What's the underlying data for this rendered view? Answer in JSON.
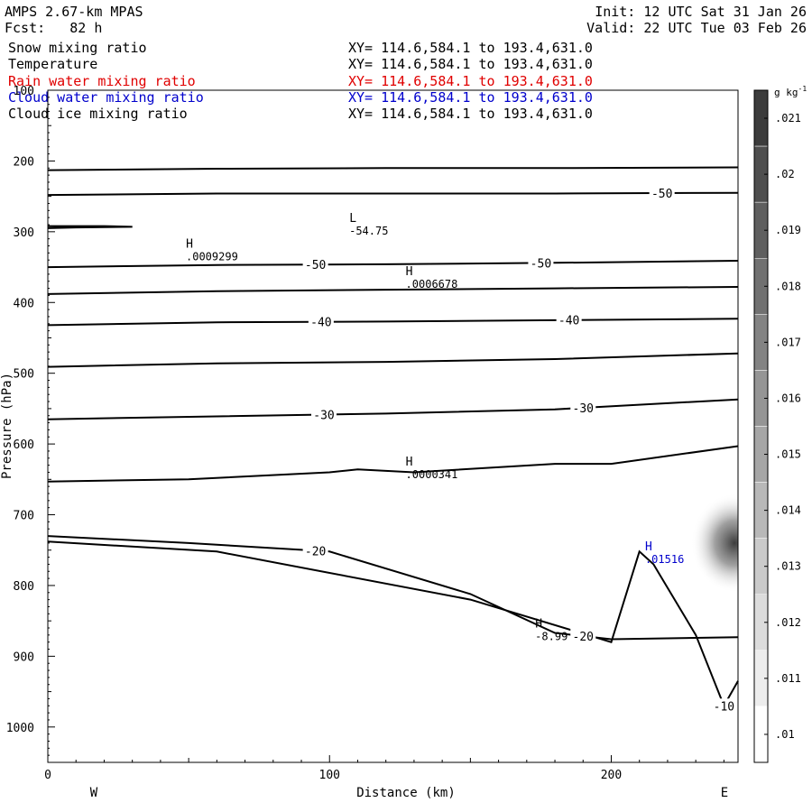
{
  "header": {
    "title": "AMPS 2.67-km MPAS",
    "forecast": "Fcst:   82 h",
    "init": "Init: 12 UTC Sat 31 Jan 26",
    "valid": "Valid: 22 UTC Tue 03 Feb 26",
    "fields": [
      {
        "name": "Snow mixing ratio",
        "xy": "XY= 114.6,584.1 to 193.4,631.0",
        "color": "#000000"
      },
      {
        "name": "Temperature",
        "xy": "XY= 114.6,584.1 to 193.4,631.0",
        "color": "#000000"
      },
      {
        "name": "Rain water mixing ratio",
        "xy": "XY= 114.6,584.1 to 193.4,631.0",
        "color": "#e00000"
      },
      {
        "name": "Cloud water mixing ratio",
        "xy": "XY= 114.6,584.1 to 193.4,631.0",
        "color": "#0000cc"
      },
      {
        "name": "Cloud ice mixing ratio",
        "xy": "XY= 114.6,584.1 to 193.4,631.0",
        "color": "#000000"
      }
    ]
  },
  "chart_data": {
    "type": "contour cross-section",
    "xlabel": "Distance (km)",
    "ylabel": "Pressure (hPa)",
    "xlim": [
      0,
      245
    ],
    "ylim": [
      100,
      1050
    ],
    "x_ticks": [
      "0",
      "100",
      "200"
    ],
    "x_tick_values": [
      0,
      100,
      200
    ],
    "y_ticks": [
      "100",
      "200",
      "300",
      "400",
      "500",
      "600",
      "700",
      "800",
      "900",
      "1000"
    ],
    "y_tick_values": [
      100,
      200,
      300,
      400,
      500,
      600,
      700,
      800,
      900,
      1000
    ],
    "west_label": "W",
    "east_label": "E",
    "temperature_contours": [
      {
        "label": "",
        "points": [
          [
            0,
            213
          ],
          [
            60,
            211
          ],
          [
            120,
            210
          ],
          [
            180,
            210
          ],
          [
            245,
            209
          ]
        ]
      },
      {
        "label": "-50",
        "label_x": 218,
        "points": [
          [
            0,
            248
          ],
          [
            60,
            246
          ],
          [
            120,
            246
          ],
          [
            180,
            246
          ],
          [
            245,
            245
          ]
        ]
      },
      {
        "label": "",
        "points": [
          [
            0,
            292
          ],
          [
            10,
            292
          ],
          [
            20,
            292
          ],
          [
            30,
            293
          ],
          [
            10,
            294
          ],
          [
            0,
            295
          ]
        ]
      },
      {
        "label": "-50",
        "label_x": 95,
        "points": [
          [
            0,
            350
          ],
          [
            60,
            347
          ],
          [
            120,
            346
          ],
          [
            180,
            344
          ],
          [
            245,
            341
          ]
        ]
      },
      {
        "label": "",
        "points": [
          [
            0,
            388
          ],
          [
            60,
            384
          ],
          [
            120,
            382
          ],
          [
            180,
            380
          ],
          [
            245,
            378
          ]
        ]
      },
      {
        "label": "-40",
        "points": [
          [
            0,
            432
          ],
          [
            60,
            428
          ],
          [
            120,
            427
          ],
          [
            180,
            425
          ],
          [
            245,
            423
          ]
        ]
      },
      {
        "label": "",
        "points": [
          [
            0,
            491
          ],
          [
            60,
            486
          ],
          [
            120,
            484
          ],
          [
            180,
            480
          ],
          [
            245,
            472
          ]
        ]
      },
      {
        "label": "-30",
        "points": [
          [
            0,
            565
          ],
          [
            60,
            561
          ],
          [
            120,
            557
          ],
          [
            180,
            551
          ],
          [
            245,
            537
          ]
        ]
      },
      {
        "label": "",
        "points": [
          [
            0,
            653
          ],
          [
            50,
            650
          ],
          [
            100,
            640
          ],
          [
            110,
            636
          ],
          [
            130,
            640
          ],
          [
            180,
            628
          ],
          [
            200,
            628
          ],
          [
            245,
            603
          ]
        ]
      },
      {
        "label": "-20",
        "points": [
          [
            0,
            730
          ],
          [
            50,
            740
          ],
          [
            100,
            752
          ],
          [
            150,
            812
          ],
          [
            180,
            867
          ],
          [
            200,
            876
          ],
          [
            245,
            873
          ]
        ]
      },
      {
        "label": "-10",
        "points": [
          [
            0,
            738
          ],
          [
            60,
            752
          ],
          [
            150,
            820
          ],
          [
            200,
            880
          ],
          [
            210,
            752
          ],
          [
            215,
            770
          ],
          [
            230,
            870
          ],
          [
            240,
            970
          ],
          [
            245,
            935
          ]
        ]
      }
    ],
    "extrema": [
      {
        "type": "L",
        "value": "-54.75",
        "x": 107,
        "p": 289
      },
      {
        "type": "H",
        "value": ".0009299",
        "x": 49,
        "p": 325
      },
      {
        "type": "H",
        "value": ".0006678",
        "x": 127,
        "p": 364
      },
      {
        "type": "H",
        "value": ".0000341",
        "x": 127,
        "p": 633
      },
      {
        "type": "H",
        "value": "-8.99",
        "x": 173,
        "p": 862
      },
      {
        "type": "H",
        "value": ".01516",
        "x": 212,
        "p": 753,
        "color": "#0000cc"
      }
    ],
    "contour_labels": [
      "-50",
      "-50",
      "-50",
      "-40",
      "-40",
      "-30",
      "-30",
      "-20",
      "-20",
      "-10"
    ],
    "colorbar": {
      "unit": "g kg",
      "unit_exp": "-1",
      "min": 0.0095,
      "max": 0.0215,
      "tick_labels": [
        ".021",
        ".02",
        ".019",
        ".018",
        ".017",
        ".016",
        ".015",
        ".014",
        ".013",
        ".012",
        ".011",
        ".01"
      ],
      "tick_values": [
        0.021,
        0.02,
        0.019,
        0.018,
        0.017,
        0.016,
        0.015,
        0.014,
        0.013,
        0.012,
        0.011,
        0.01
      ]
    },
    "shading": {
      "field": "Snow mixing ratio",
      "max_x": 245,
      "max_p": 740,
      "peak_value": 0.014
    }
  }
}
